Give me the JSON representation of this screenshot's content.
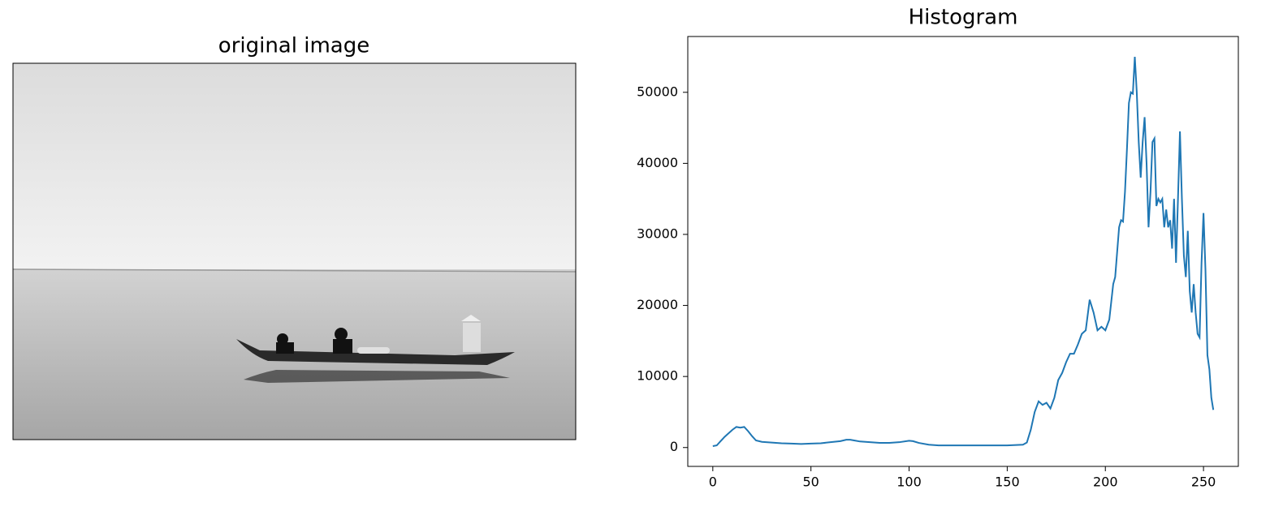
{
  "chart_data": [
    {
      "type": "image",
      "title": "original image"
    },
    {
      "type": "line",
      "title": "Histogram",
      "x": [
        0,
        2,
        4,
        6,
        8,
        10,
        12,
        14,
        16,
        18,
        20,
        22,
        25,
        30,
        35,
        40,
        45,
        50,
        55,
        60,
        65,
        68,
        70,
        72,
        75,
        80,
        85,
        90,
        95,
        100,
        102,
        105,
        110,
        115,
        120,
        130,
        140,
        150,
        158,
        160,
        162,
        164,
        166,
        168,
        170,
        172,
        174,
        176,
        178,
        180,
        182,
        184,
        186,
        188,
        190,
        192,
        194,
        196,
        198,
        200,
        202,
        204,
        205,
        207,
        208,
        209,
        210,
        211,
        212,
        213,
        214,
        215,
        216,
        217,
        218,
        219,
        220,
        221,
        222,
        223,
        224,
        225,
        226,
        227,
        228,
        229,
        230,
        231,
        232,
        233,
        234,
        235,
        236,
        237,
        238,
        239,
        240,
        241,
        242,
        243,
        244,
        245,
        246,
        247,
        248,
        249,
        250,
        251,
        252,
        253,
        254,
        255
      ],
      "series": [
        {
          "color": "#1f77b4",
          "values": [
            200,
            300,
            900,
            1500,
            2000,
            2500,
            2900,
            2800,
            2900,
            2300,
            1600,
            1000,
            800,
            700,
            600,
            550,
            500,
            550,
            600,
            750,
            900,
            1100,
            1100,
            1000,
            850,
            750,
            650,
            650,
            750,
            950,
            900,
            650,
            400,
            300,
            300,
            300,
            300,
            300,
            400,
            700,
            2500,
            5000,
            6500,
            6000,
            6300,
            5500,
            7000,
            9500,
            10500,
            12000,
            13200,
            13200,
            14500,
            16000,
            16500,
            20800,
            19000,
            16500,
            17000,
            16500,
            18000,
            23000,
            24000,
            31000,
            32000,
            31800,
            36000,
            42000,
            48500,
            50000,
            49800,
            55000,
            50000,
            43000,
            38000,
            43000,
            46500,
            40000,
            31000,
            36000,
            43000,
            43500,
            34000,
            35000,
            34500,
            35000,
            31000,
            33500,
            31000,
            32000,
            28000,
            35000,
            26000,
            35000,
            44500,
            35000,
            27000,
            24000,
            30500,
            22000,
            19000,
            23000,
            19000,
            16000,
            15500,
            26000,
            33000,
            25000,
            13000,
            11000,
            7000,
            5300
          ]
        }
      ],
      "xlim": [
        -12.75,
        267.75
      ],
      "xticks": [
        0,
        50,
        100,
        150,
        200,
        250
      ],
      "ylim": [
        -2655,
        57855
      ],
      "yticks": [
        0,
        10000,
        20000,
        30000,
        40000,
        50000
      ]
    }
  ]
}
